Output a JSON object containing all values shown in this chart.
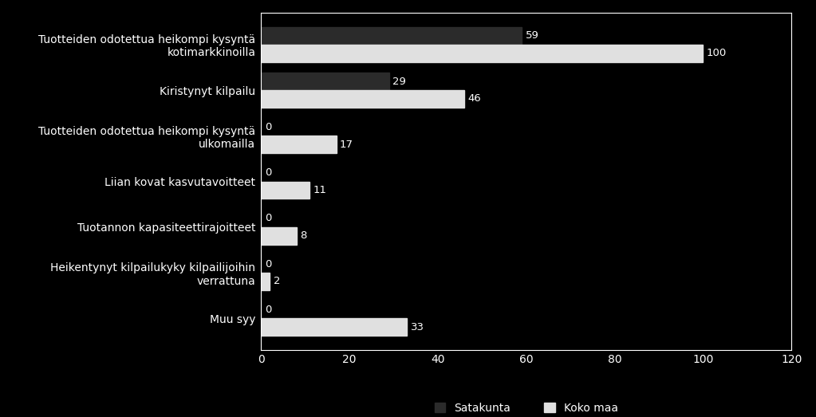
{
  "categories": [
    "Muu syy",
    "Heikentynyt kilpailukyky kilpailijoihin\nverrattuna",
    "Tuotannon kapasiteettirajoitteet",
    "Liian kovat kasvutavoitteet",
    "Tuotteiden odotettua heikompi kysyntä\nulkomailla",
    "Kiristynyt kilpailu",
    "Tuotteiden odotettua heikompi kysyntä\nkotimarkkinoilla"
  ],
  "satakunta": [
    0,
    0,
    0,
    0,
    0,
    29,
    59
  ],
  "koko_maa": [
    33,
    2,
    8,
    11,
    17,
    46,
    100
  ],
  "satakunta_labels": [
    "0",
    "0",
    "0",
    "0",
    "0",
    "29",
    "59"
  ],
  "koko_maa_labels": [
    "33",
    "2",
    "8",
    "11",
    "17",
    "46",
    "100"
  ],
  "bar_height": 0.38,
  "background_color": "#000000",
  "text_color": "#ffffff",
  "satakunta_color": "#2b2b2b",
  "koko_maa_color": "#e0e0e0",
  "xlim": [
    0,
    120
  ],
  "xticks": [
    0,
    20,
    40,
    60,
    80,
    100,
    120
  ],
  "legend_satakunta": "Satakunta",
  "legend_koko_maa": "Koko maa",
  "font_size": 10,
  "label_font_size": 9.5
}
